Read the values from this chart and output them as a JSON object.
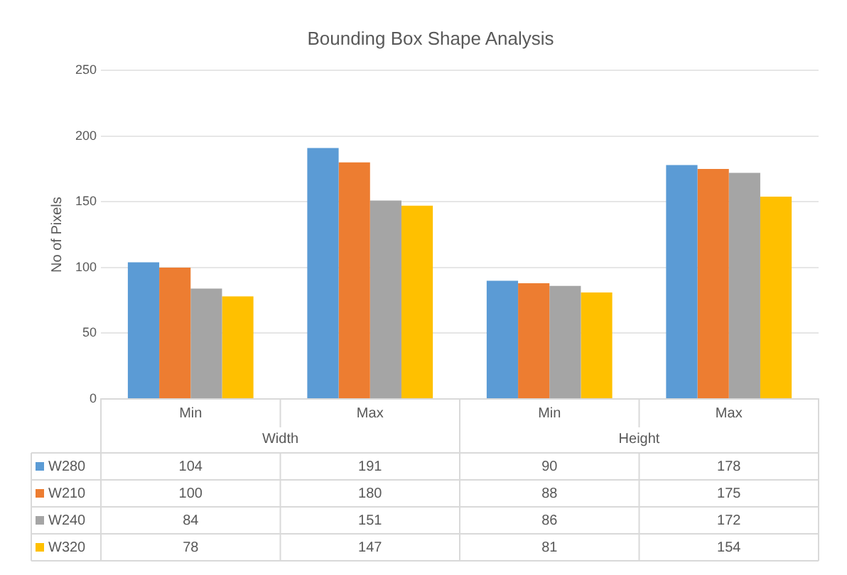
{
  "chart_data": {
    "type": "bar",
    "title": "Bounding Box Shape Analysis",
    "ylabel": "No of Pixels",
    "categories": [
      "Min",
      "Max",
      "Min",
      "Max"
    ],
    "annotations": [
      "Width",
      "Height"
    ],
    "series": [
      {
        "name": "W280",
        "color": "#5b9bd5",
        "values": [
          104,
          191,
          90,
          178
        ]
      },
      {
        "name": "W210",
        "color": "#ed7d31",
        "values": [
          100,
          180,
          88,
          175
        ]
      },
      {
        "name": "W240",
        "color": "#a5a5a5",
        "values": [
          84,
          151,
          86,
          172
        ]
      },
      {
        "name": "W320",
        "color": "#ffc000",
        "values": [
          78,
          147,
          81,
          154
        ]
      }
    ],
    "ylim": [
      0,
      250
    ],
    "yticks": [
      0,
      50,
      100,
      150,
      200,
      250
    ],
    "grid": true,
    "legend": "bottom",
    "data_labels": true
  }
}
